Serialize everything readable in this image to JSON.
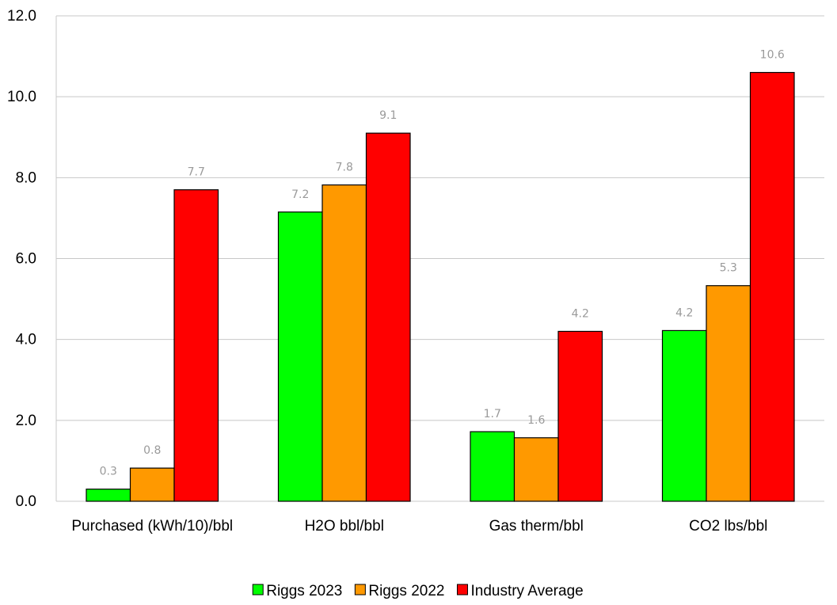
{
  "chart_data": {
    "type": "bar",
    "categories": [
      "Purchased (kWh/10)/bbl",
      "H2O bbl/bbl",
      "Gas therm/bbl",
      "CO2 lbs/bbl"
    ],
    "series": [
      {
        "name": "Riggs 2023",
        "color": "#00ff00",
        "values": [
          0.3,
          7.15,
          1.72,
          4.22
        ],
        "labels": [
          "0.3",
          "7.2",
          "1.7",
          "4.2"
        ]
      },
      {
        "name": "Riggs 2022",
        "color": "#ff9900",
        "values": [
          0.82,
          7.82,
          1.57,
          5.33
        ],
        "labels": [
          "0.8",
          "7.8",
          "1.6",
          "5.3"
        ]
      },
      {
        "name": "Industry Average",
        "color": "#ff0000",
        "values": [
          7.7,
          9.1,
          4.2,
          10.6
        ],
        "labels": [
          "7.7",
          "9.1",
          "4.2",
          "10.6"
        ]
      }
    ],
    "yticks": [
      "0.0",
      "2.0",
      "4.0",
      "6.0",
      "8.0",
      "10.0",
      "12.0"
    ],
    "ylim": [
      0,
      12
    ],
    "grid": true,
    "legend_position": "bottom"
  }
}
